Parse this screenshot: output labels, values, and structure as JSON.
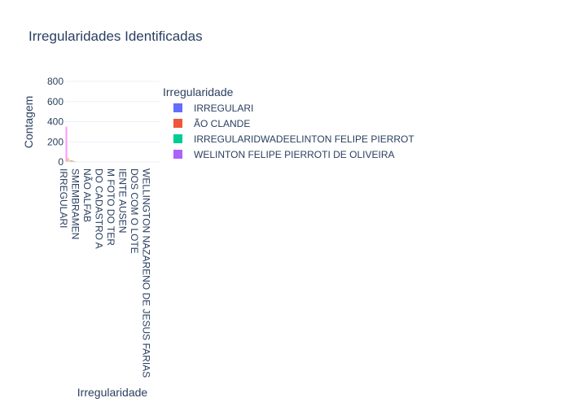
{
  "chart_data": {
    "type": "bar",
    "title": "Irregularidades Identificadas",
    "xlabel": "Irregularidade",
    "ylabel": "Contagem",
    "ylim": [
      0,
      800
    ],
    "yticks": [
      "0",
      "200",
      "400",
      "600",
      "800"
    ],
    "grid": true,
    "legend": {
      "title": "Irregularidade",
      "placement": "right",
      "entries": [
        {
          "name": "IRREGULARI",
          "color": "#636efa"
        },
        {
          "name": "ÃO CLANDE",
          "color": "#ef553b"
        },
        {
          "name": "IRREGULARIDWADEELINTON FELIPE PIERROT",
          "color": "#00cc96"
        },
        {
          "name": "WELINTON FELIPE PIERROTI DE OLIVEIRA",
          "color": "#ab63fa"
        }
      ]
    },
    "categories": [
      "IRREGULARI",
      "SMEMBRAMEN",
      "NÃO ALFAB",
      "DO CADASTRO A",
      "M FOTO DO TER",
      "IENTE AUSEN",
      "DOS COM O LOTE",
      "WELLINGTON NAZARENO DE JESUS FARIAS"
    ],
    "values": [
      350,
      40,
      20,
      14,
      10,
      7,
      4,
      2
    ],
    "colors": [
      "#ff97ff",
      "#fecb52",
      "#b6e880",
      "#ff6692",
      "#19d3f3",
      "#ffa15a",
      "#ab63fa",
      "#00cc96"
    ]
  }
}
